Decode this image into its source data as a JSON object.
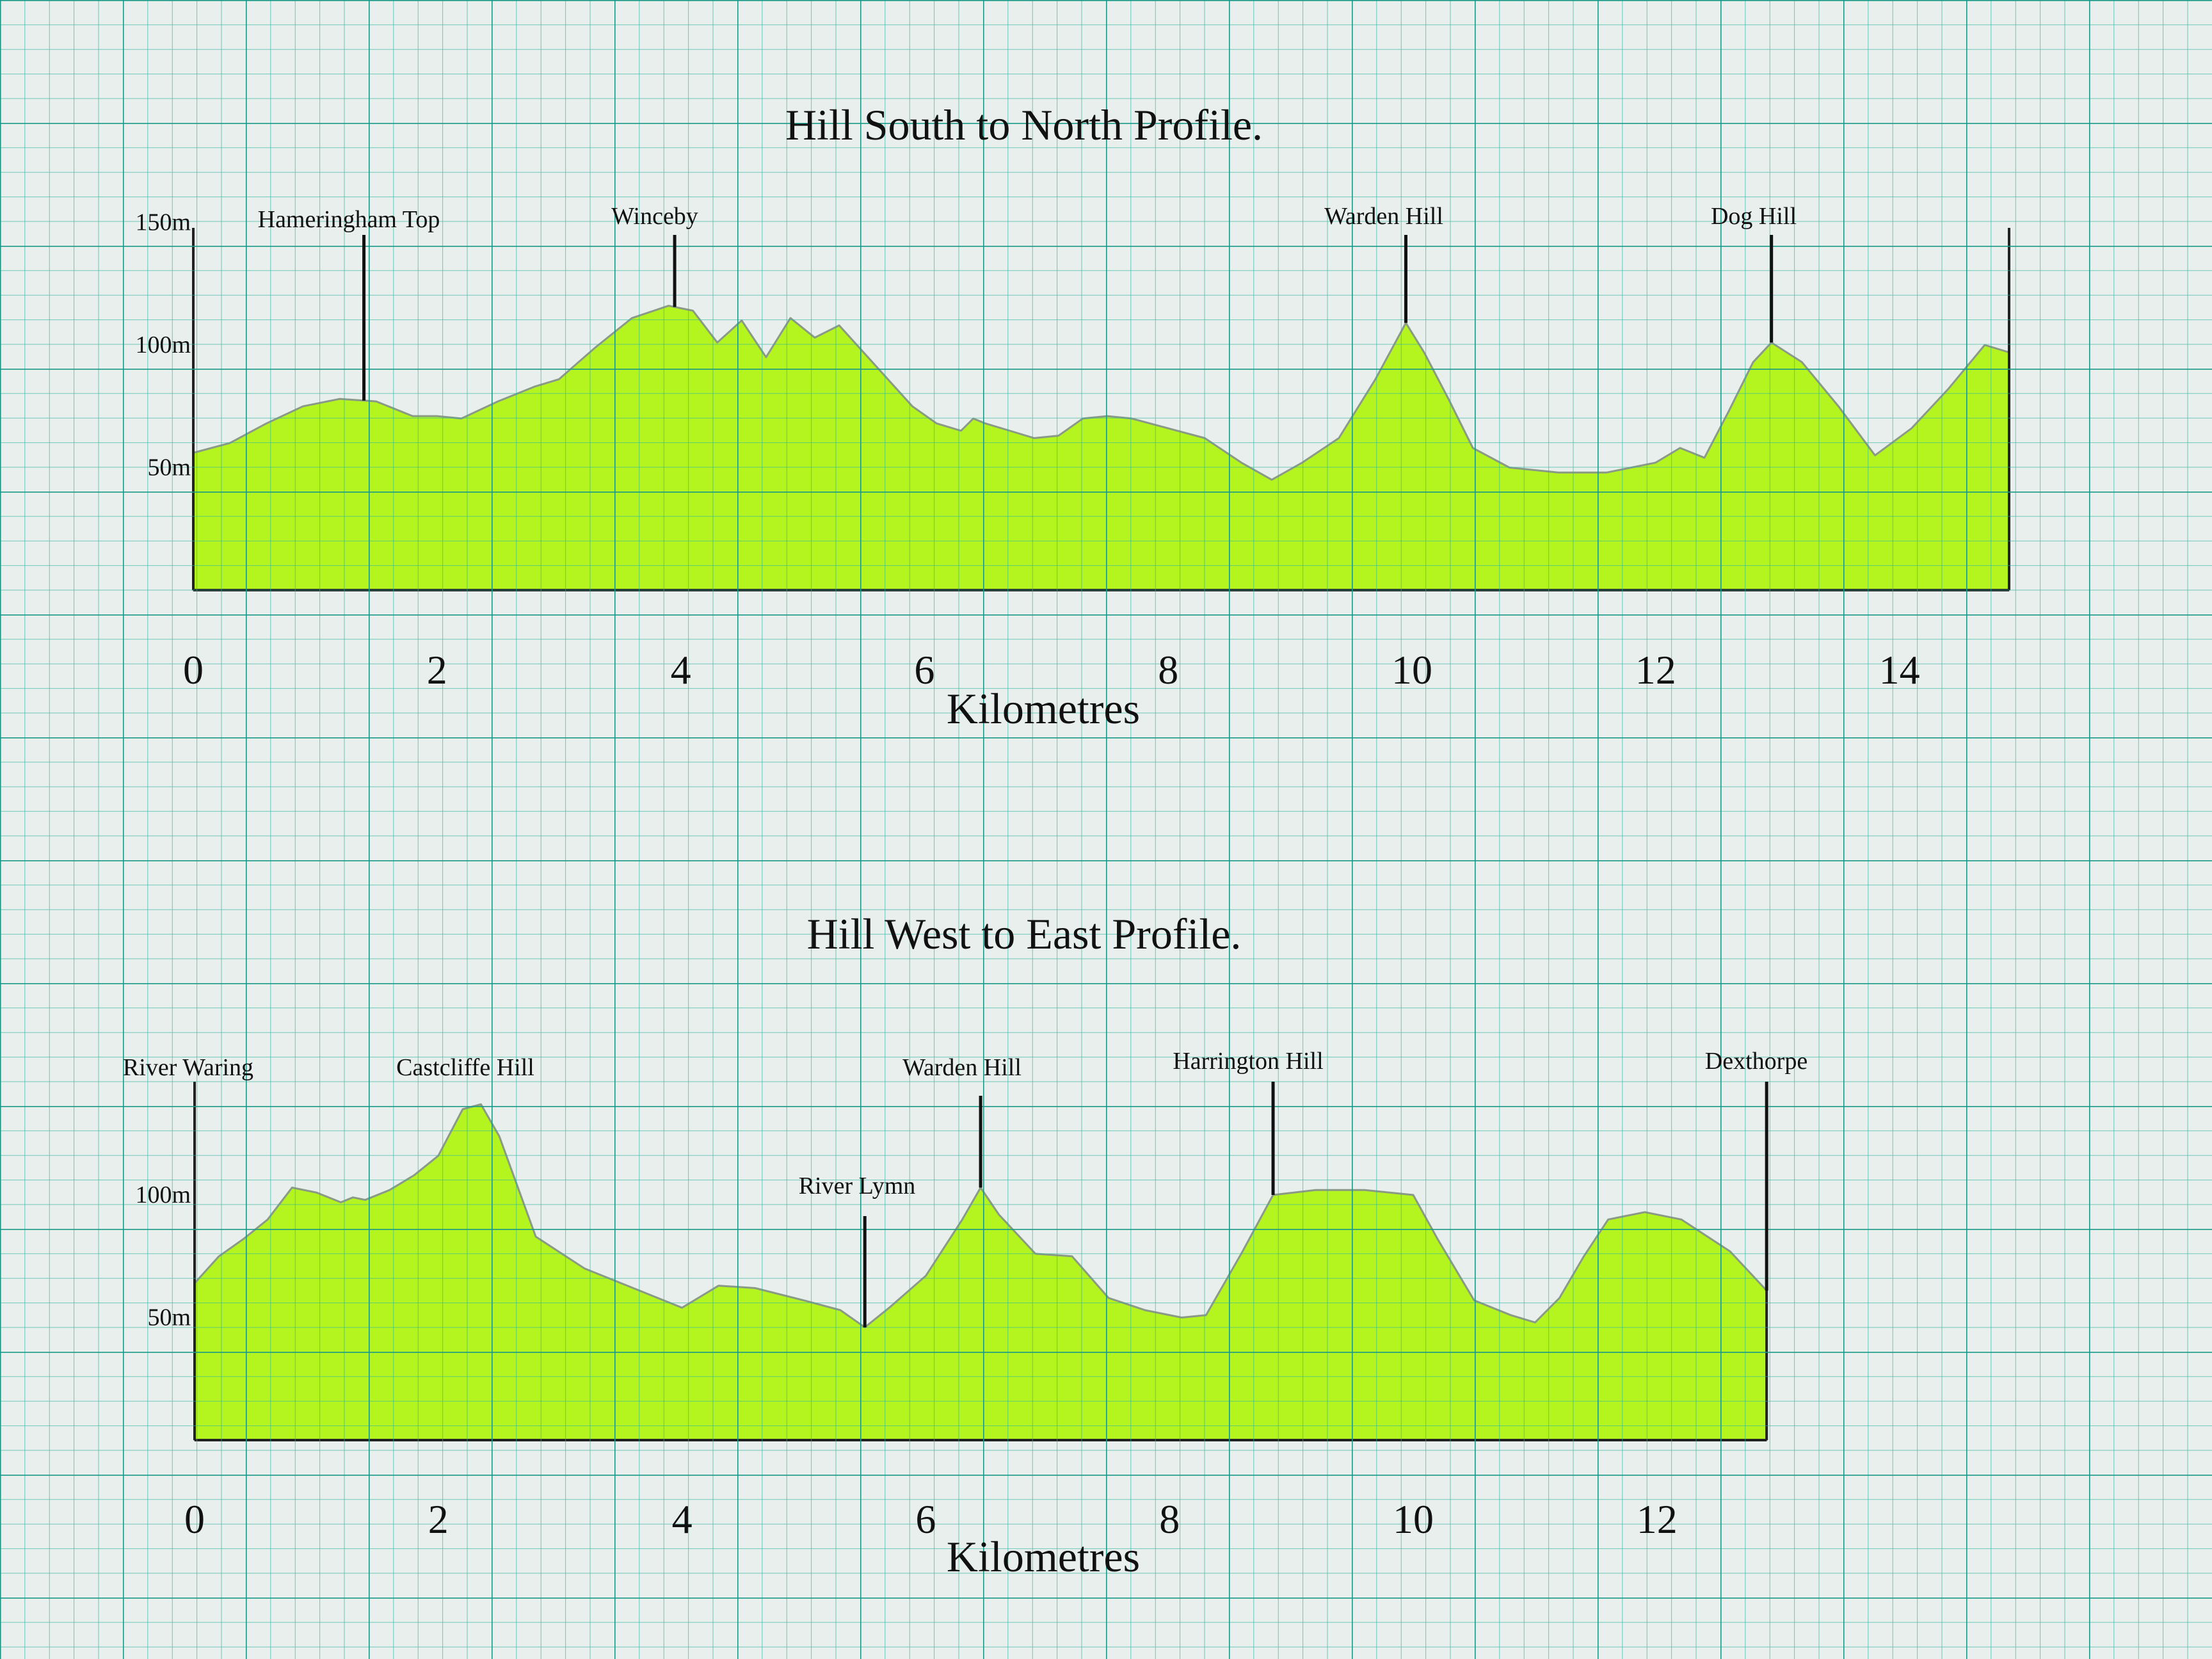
{
  "chart_data": [
    {
      "type": "area",
      "title": "Hill South to North Profile.",
      "xlabel": "Kilometres",
      "ylabel": "",
      "x_ticks": [
        "0",
        "2",
        "4",
        "6",
        "8",
        "10",
        "12",
        "14"
      ],
      "y_ticks": [
        "50m",
        "100m",
        "150m"
      ],
      "xlim": [
        0,
        14.9
      ],
      "ylim": [
        0,
        150
      ],
      "series": [
        {
          "x": [
            0,
            0.3,
            0.6,
            0.9,
            1.2,
            1.5,
            1.8,
            2.0,
            2.2,
            2.5,
            2.8,
            3.0,
            3.3,
            3.6,
            3.9,
            4.1,
            4.3,
            4.5,
            4.7,
            4.9,
            5.1,
            5.3,
            5.5,
            5.7,
            5.9,
            6.1,
            6.3,
            6.4,
            6.5,
            6.7,
            6.9,
            7.1,
            7.3,
            7.5,
            7.7,
            8.0,
            8.3,
            8.6,
            8.85,
            9.1,
            9.4,
            9.7,
            9.95,
            10.1,
            10.3,
            10.5,
            10.8,
            11.2,
            11.6,
            12.0,
            12.2,
            12.4,
            12.6,
            12.8,
            12.95,
            13.2,
            13.5,
            13.8,
            14.1,
            14.4,
            14.7,
            14.9
          ],
          "values": [
            56,
            60,
            68,
            75,
            78,
            77,
            71,
            71,
            70,
            77,
            83,
            86,
            99,
            111,
            116,
            114,
            101,
            110,
            95,
            111,
            103,
            108,
            97,
            86,
            75,
            68,
            65,
            70,
            68,
            65,
            62,
            63,
            70,
            71,
            70,
            66,
            62,
            52,
            45,
            52,
            62,
            86,
            109,
            97,
            78,
            58,
            50,
            48,
            48,
            52,
            58,
            54,
            73,
            93,
            101,
            93,
            75,
            55,
            66,
            82,
            100,
            97
          ]
        }
      ],
      "annotations": [
        {
          "label": "Hameringham Top",
          "x": 1.4
        },
        {
          "label": "Winceby",
          "x": 3.95
        },
        {
          "label": "Warden Hill",
          "x": 9.95
        },
        {
          "label": "Dog Hill",
          "x": 12.95
        }
      ],
      "grid": true
    },
    {
      "type": "area",
      "title": "Hill West to East Profile.",
      "xlabel": "Kilometres",
      "ylabel": "",
      "x_ticks": [
        "0",
        "2",
        "4",
        "6",
        "8",
        "10",
        "12"
      ],
      "y_ticks": [
        "50m",
        "100m"
      ],
      "xlim": [
        0,
        12.9
      ],
      "ylim": [
        0,
        150
      ],
      "series": [
        {
          "x": [
            0,
            0.2,
            0.4,
            0.6,
            0.8,
            1.0,
            1.2,
            1.3,
            1.4,
            1.6,
            1.8,
            2.0,
            2.2,
            2.35,
            2.5,
            2.8,
            3.2,
            3.6,
            4.0,
            4.3,
            4.6,
            5.0,
            5.3,
            5.5,
            5.7,
            6.0,
            6.3,
            6.45,
            6.6,
            6.9,
            7.2,
            7.5,
            7.8,
            8.1,
            8.3,
            8.6,
            8.85,
            9.2,
            9.6,
            10.0,
            10.2,
            10.5,
            10.8,
            11.0,
            11.2,
            11.4,
            11.6,
            11.9,
            12.2,
            12.6,
            12.9
          ],
          "values": [
            64,
            75,
            82,
            90,
            103,
            101,
            97,
            99,
            98,
            102,
            108,
            116,
            135,
            137,
            124,
            83,
            70,
            62,
            54,
            63,
            62,
            57,
            53,
            46,
            54,
            67,
            90,
            103,
            92,
            76,
            75,
            58,
            53,
            50,
            51,
            77,
            100,
            102,
            102,
            100,
            82,
            57,
            51,
            48,
            58,
            75,
            90,
            93,
            90,
            77,
            61
          ]
        }
      ],
      "annotations": [
        {
          "label": "River Waring",
          "x": 0
        },
        {
          "label": "Castcliffe Hill",
          "x": 2.2
        },
        {
          "label": "River Lymn",
          "x": 5.5
        },
        {
          "label": "Warden Hill",
          "x": 6.45
        },
        {
          "label": "Harrington Hill",
          "x": 8.85
        },
        {
          "label": "Dexthorpe",
          "x": 12.9
        }
      ],
      "grid": true
    }
  ]
}
